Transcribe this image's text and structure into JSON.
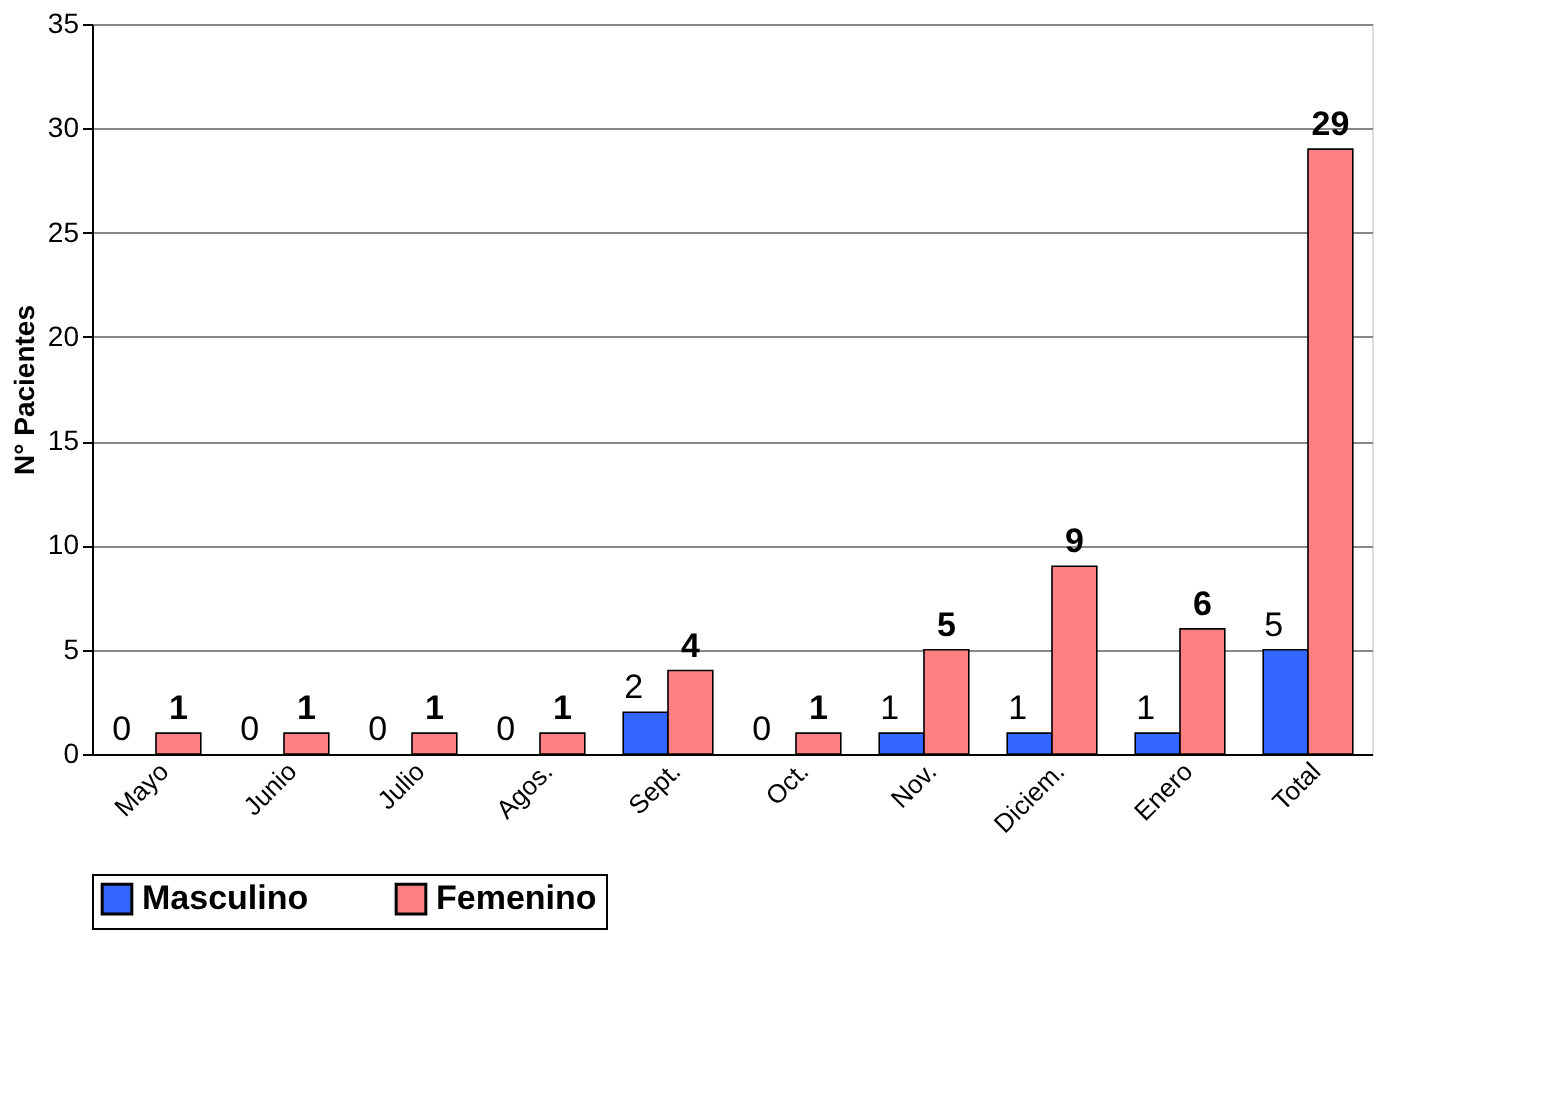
{
  "chart_data": {
    "type": "bar",
    "ylabel": "N° Pacientes",
    "categories": [
      "Mayo",
      "Junio",
      "Julio",
      "Agos.",
      "Sept.",
      "Oct.",
      "Nov.",
      "Diciem.",
      "Enero",
      "Total"
    ],
    "series": [
      {
        "name": "Masculino",
        "color": "#3366ff",
        "values": [
          0,
          0,
          0,
          0,
          2,
          0,
          1,
          1,
          1,
          5
        ]
      },
      {
        "name": "Femenino",
        "color": "#ff8080",
        "values": [
          1,
          1,
          1,
          1,
          4,
          1,
          5,
          9,
          6,
          29
        ]
      }
    ],
    "ylim": [
      0,
      35
    ],
    "yticks": [
      0,
      5,
      10,
      15,
      20,
      25,
      30,
      35
    ],
    "grid": "y",
    "legend": "bottom",
    "data_labels": true
  }
}
